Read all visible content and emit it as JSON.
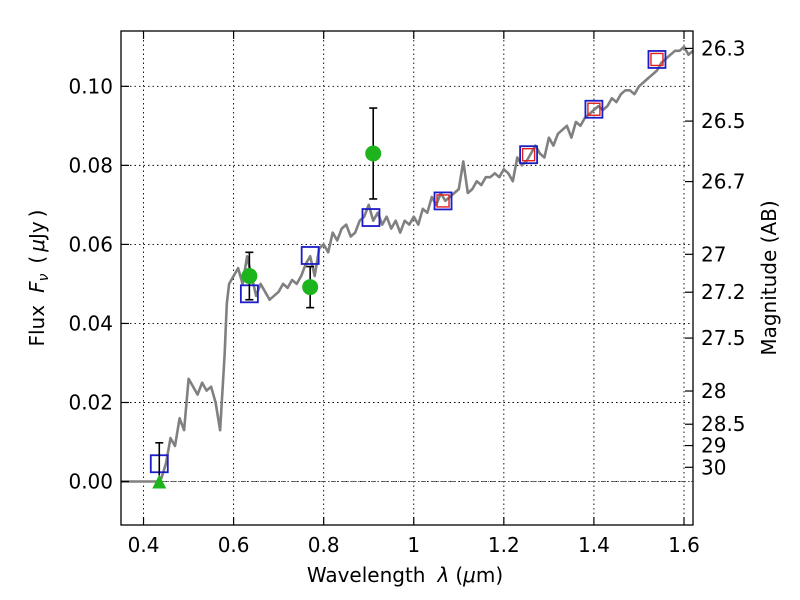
{
  "chart_data": {
    "type": "scatter",
    "xlabel_prefix": "Wavelength",
    "xlabel_symbol": "λ",
    "xlabel_unit_open": "(",
    "xlabel_unit_mu": "μ",
    "xlabel_unit_rest": "m)",
    "ylabel_prefix": "Flux",
    "ylabel_symbol": "F",
    "ylabel_sub": "ν",
    "ylabel_unit_open": "(",
    "ylabel_unit_mu": "μ",
    "ylabel_unit_rest": "Jy",
    "ylabel_unit_close": ")",
    "y2label": "Magnitude (AB)",
    "xlim": [
      0.35,
      1.62
    ],
    "ylim": [
      -0.011,
      0.114
    ],
    "grid": true,
    "x_ticks": [
      0.4,
      0.6,
      0.8,
      1.0,
      1.2,
      1.4,
      1.6
    ],
    "x_tick_labels": [
      "0.4",
      "0.6",
      "0.8",
      "1",
      "1.2",
      "1.4",
      "1.6"
    ],
    "y_ticks": [
      0.0,
      0.02,
      0.04,
      0.06,
      0.08,
      0.1
    ],
    "y_tick_labels": [
      "0.00",
      "0.02",
      "0.04",
      "0.06",
      "0.08",
      "0.10"
    ],
    "y2_ticks": [
      {
        "label": "26.3",
        "flux": 0.1096
      },
      {
        "label": "26.5",
        "flux": 0.0912
      },
      {
        "label": "26.7",
        "flux": 0.0759
      },
      {
        "label": "27",
        "flux": 0.0575
      },
      {
        "label": "27.2",
        "flux": 0.0479
      },
      {
        "label": "27.5",
        "flux": 0.0363
      },
      {
        "label": "28",
        "flux": 0.0229
      },
      {
        "label": "28.5",
        "flux": 0.0145
      },
      {
        "label": "29",
        "flux": 0.0091
      },
      {
        "label": "30",
        "flux": 0.0036
      }
    ],
    "colors": {
      "model": "#808080",
      "observed": "#1eb41e",
      "model_box": "#1c1cc8",
      "synthetic": "#e0201c",
      "errorbar": "#000000"
    },
    "series": [
      {
        "kind": "model_sed_line",
        "x": [
          0.35,
          0.43,
          0.44,
          0.45,
          0.46,
          0.47,
          0.48,
          0.49,
          0.5,
          0.51,
          0.52,
          0.53,
          0.54,
          0.55,
          0.56,
          0.57,
          0.58,
          0.585,
          0.59,
          0.6,
          0.61,
          0.62,
          0.63,
          0.64,
          0.65,
          0.66,
          0.67,
          0.68,
          0.69,
          0.7,
          0.71,
          0.72,
          0.73,
          0.74,
          0.75,
          0.76,
          0.77,
          0.78,
          0.79,
          0.8,
          0.81,
          0.82,
          0.83,
          0.84,
          0.85,
          0.86,
          0.87,
          0.88,
          0.89,
          0.9,
          0.91,
          0.92,
          0.93,
          0.94,
          0.95,
          0.96,
          0.97,
          0.98,
          0.99,
          1.0,
          1.01,
          1.02,
          1.03,
          1.04,
          1.05,
          1.06,
          1.07,
          1.08,
          1.09,
          1.1,
          1.11,
          1.12,
          1.13,
          1.14,
          1.15,
          1.16,
          1.17,
          1.18,
          1.19,
          1.2,
          1.21,
          1.22,
          1.23,
          1.24,
          1.25,
          1.26,
          1.27,
          1.28,
          1.29,
          1.3,
          1.31,
          1.32,
          1.33,
          1.34,
          1.35,
          1.36,
          1.37,
          1.38,
          1.39,
          1.4,
          1.41,
          1.42,
          1.43,
          1.44,
          1.45,
          1.46,
          1.47,
          1.48,
          1.49,
          1.5,
          1.51,
          1.52,
          1.53,
          1.54,
          1.55,
          1.56,
          1.57,
          1.58,
          1.59,
          1.6,
          1.61,
          1.62
        ],
        "y": [
          0.0,
          0.0,
          0.0009,
          0.0046,
          0.011,
          0.009,
          0.016,
          0.013,
          0.026,
          0.024,
          0.022,
          0.025,
          0.023,
          0.024,
          0.02,
          0.013,
          0.032,
          0.045,
          0.05,
          0.052,
          0.054,
          0.05,
          0.057,
          0.052,
          0.047,
          0.05,
          0.048,
          0.046,
          0.047,
          0.048,
          0.05,
          0.049,
          0.051,
          0.05,
          0.052,
          0.055,
          0.057,
          0.052,
          0.059,
          0.06,
          0.058,
          0.063,
          0.061,
          0.064,
          0.065,
          0.062,
          0.063,
          0.066,
          0.067,
          0.07,
          0.066,
          0.068,
          0.065,
          0.067,
          0.064,
          0.066,
          0.063,
          0.066,
          0.065,
          0.067,
          0.065,
          0.069,
          0.068,
          0.072,
          0.07,
          0.073,
          0.071,
          0.072,
          0.073,
          0.074,
          0.081,
          0.073,
          0.074,
          0.076,
          0.075,
          0.077,
          0.077,
          0.078,
          0.077,
          0.079,
          0.078,
          0.076,
          0.082,
          0.08,
          0.081,
          0.083,
          0.085,
          0.083,
          0.082,
          0.087,
          0.085,
          0.088,
          0.089,
          0.09,
          0.087,
          0.091,
          0.09,
          0.092,
          0.093,
          0.094,
          0.095,
          0.094,
          0.095,
          0.097,
          0.096,
          0.098,
          0.099,
          0.099,
          0.098,
          0.1,
          0.101,
          0.102,
          0.103,
          0.104,
          0.106,
          0.107,
          0.108,
          0.109,
          0.109,
          0.11,
          0.108,
          0.109
        ]
      },
      {
        "kind": "model_photometry_boxes",
        "x": [
          0.435,
          0.635,
          0.77,
          0.905,
          1.065,
          1.255,
          1.4,
          1.54
        ],
        "y": [
          0.0045,
          0.0475,
          0.0572,
          0.0668,
          0.071,
          0.0827,
          0.0942,
          0.1068
        ]
      },
      {
        "kind": "synthetic_photometry_squares",
        "x": [
          1.065,
          1.255,
          1.4,
          1.54
        ],
        "y": [
          0.071,
          0.0827,
          0.0942,
          0.1068
        ]
      },
      {
        "kind": "observed_detections",
        "x": [
          0.635,
          0.77,
          0.91
        ],
        "y": [
          0.052,
          0.0492,
          0.083
        ],
        "yerr": [
          0.006,
          0.0052,
          0.0115
        ]
      },
      {
        "kind": "observed_upper_limit",
        "x": [
          0.435
        ],
        "y": [
          0.0
        ],
        "yerr_upper": [
          0.0098
        ]
      }
    ]
  }
}
